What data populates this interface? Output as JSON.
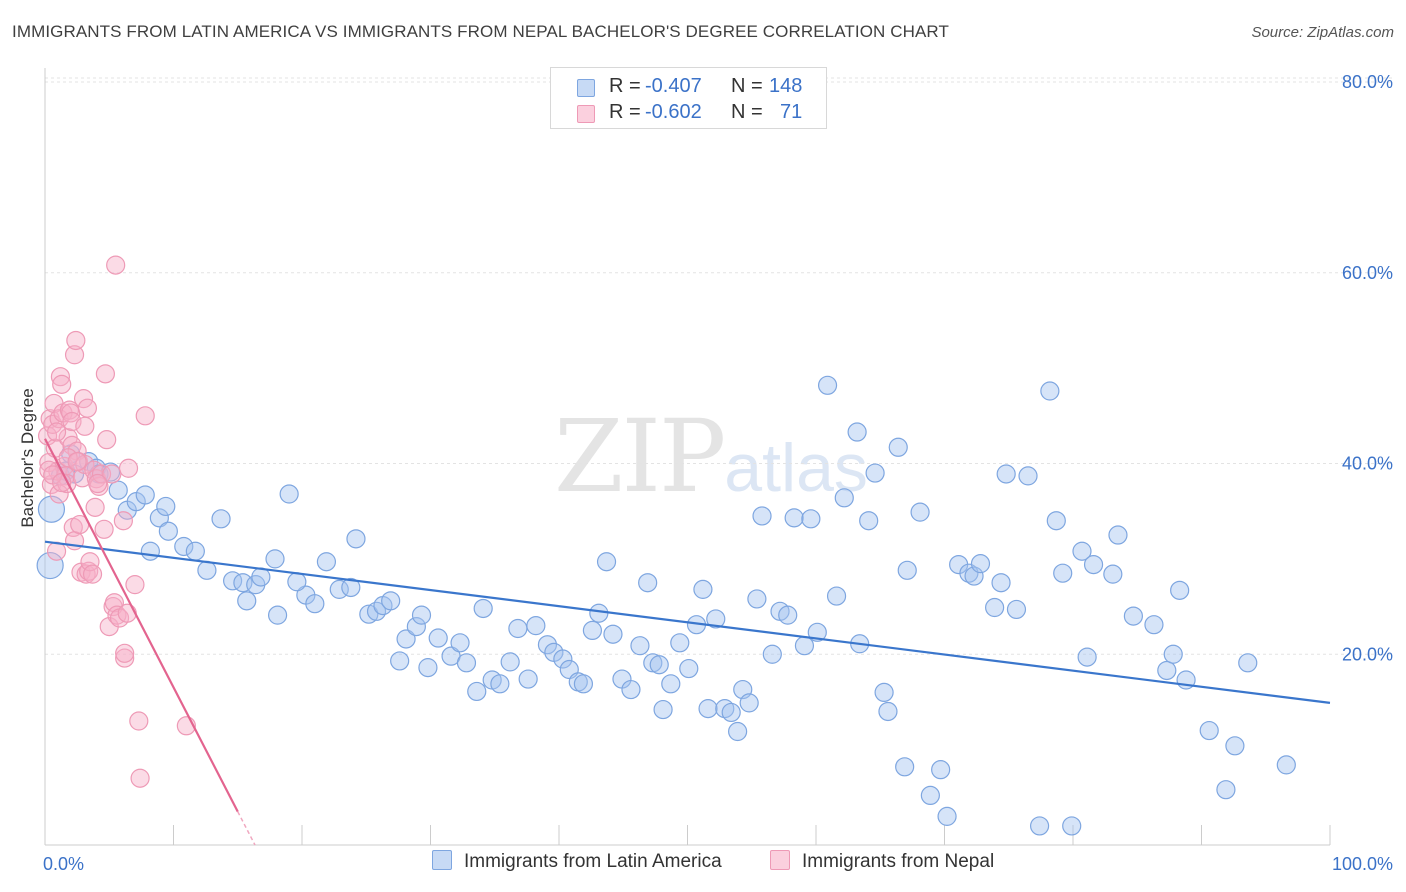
{
  "title": "IMMIGRANTS FROM LATIN AMERICA VS IMMIGRANTS FROM NEPAL BACHELOR'S DEGREE CORRELATION CHART",
  "source": "Source: ZipAtlas.com",
  "watermark": {
    "zip": "ZIP",
    "atlas": "atlas"
  },
  "legend": {
    "rows": [
      {
        "r_label": "R =",
        "r_value": "-0.407",
        "n_label": "N =",
        "n_value": "148",
        "color": "#a9c6ee"
      },
      {
        "r_label": "R =",
        "r_value": "-0.602",
        "n_label": "N =",
        "n_value": "71",
        "color": "#f5b3c8"
      }
    ]
  },
  "bottom_legend": [
    {
      "label": "Immigrants from Latin America",
      "color": "#a9c6ee"
    },
    {
      "label": "Immigrants from Nepal",
      "color": "#f5b3c8"
    }
  ],
  "chart_data": {
    "type": "scatter",
    "title": "IMMIGRANTS FROM LATIN AMERICA VS IMMIGRANTS FROM NEPAL BACHELOR'S DEGREE CORRELATION CHART",
    "xlabel": "",
    "ylabel": "Bachelor's Degree",
    "xlim": [
      0,
      100
    ],
    "ylim": [
      0,
      80
    ],
    "x_ticks_labels": [
      "0.0%",
      "100.0%"
    ],
    "y_ticks": [
      20,
      40,
      60,
      80
    ],
    "y_tick_labels": [
      "20.0%",
      "40.0%",
      "60.0%",
      "80.0%"
    ],
    "grid": true,
    "legend_position": "top-center",
    "series": [
      {
        "name": "Immigrants from Latin America",
        "color": "#5b8fd6",
        "trend": {
          "x": [
            0,
            100
          ],
          "y": [
            31.8,
            14.9
          ]
        },
        "points": [
          [
            0.4,
            29.3
          ],
          [
            0.5,
            35.2
          ],
          [
            1.2,
            38.7
          ],
          [
            1.6,
            39.2
          ],
          [
            2.0,
            41.0
          ],
          [
            2.3,
            38.9
          ],
          [
            3.4,
            40.2
          ],
          [
            4.0,
            39.5
          ],
          [
            4.2,
            38.9
          ],
          [
            5.1,
            39.1
          ],
          [
            5.7,
            37.2
          ],
          [
            6.4,
            35.1
          ],
          [
            7.1,
            36.0
          ],
          [
            7.8,
            36.7
          ],
          [
            8.2,
            30.8
          ],
          [
            8.9,
            34.3
          ],
          [
            9.4,
            35.5
          ],
          [
            9.6,
            32.9
          ],
          [
            10.8,
            31.3
          ],
          [
            11.7,
            30.8
          ],
          [
            12.6,
            28.8
          ],
          [
            13.7,
            34.2
          ],
          [
            14.6,
            27.7
          ],
          [
            15.4,
            27.5
          ],
          [
            15.7,
            25.6
          ],
          [
            16.4,
            27.3
          ],
          [
            16.8,
            28.1
          ],
          [
            18.1,
            24.1
          ],
          [
            17.9,
            30.0
          ],
          [
            19.0,
            36.8
          ],
          [
            20.3,
            26.2
          ],
          [
            21.0,
            25.3
          ],
          [
            19.6,
            27.6
          ],
          [
            21.9,
            29.7
          ],
          [
            22.9,
            26.8
          ],
          [
            23.8,
            27.0
          ],
          [
            24.2,
            32.1
          ],
          [
            25.2,
            24.2
          ],
          [
            25.8,
            24.5
          ],
          [
            26.3,
            25.1
          ],
          [
            26.9,
            25.6
          ],
          [
            27.6,
            19.3
          ],
          [
            28.1,
            21.6
          ],
          [
            28.9,
            22.9
          ],
          [
            29.3,
            24.1
          ],
          [
            29.8,
            18.6
          ],
          [
            30.6,
            21.7
          ],
          [
            31.6,
            19.8
          ],
          [
            32.3,
            21.2
          ],
          [
            32.8,
            19.1
          ],
          [
            33.6,
            16.1
          ],
          [
            34.1,
            24.8
          ],
          [
            34.8,
            17.3
          ],
          [
            35.4,
            16.9
          ],
          [
            36.2,
            19.2
          ],
          [
            36.8,
            22.7
          ],
          [
            37.6,
            17.4
          ],
          [
            38.2,
            23.0
          ],
          [
            39.1,
            21.0
          ],
          [
            39.6,
            20.2
          ],
          [
            40.3,
            19.5
          ],
          [
            40.8,
            18.4
          ],
          [
            41.5,
            17.1
          ],
          [
            41.9,
            16.9
          ],
          [
            42.6,
            22.5
          ],
          [
            43.1,
            24.3
          ],
          [
            43.7,
            29.7
          ],
          [
            44.2,
            22.1
          ],
          [
            44.9,
            17.4
          ],
          [
            45.6,
            16.3
          ],
          [
            46.3,
            20.9
          ],
          [
            46.9,
            27.5
          ],
          [
            47.3,
            19.1
          ],
          [
            47.8,
            18.9
          ],
          [
            48.1,
            14.2
          ],
          [
            48.7,
            16.9
          ],
          [
            49.4,
            21.2
          ],
          [
            50.1,
            18.5
          ],
          [
            50.7,
            23.1
          ],
          [
            51.2,
            26.8
          ],
          [
            51.6,
            14.3
          ],
          [
            52.2,
            23.7
          ],
          [
            52.9,
            14.3
          ],
          [
            53.4,
            13.9
          ],
          [
            53.9,
            11.9
          ],
          [
            54.3,
            16.3
          ],
          [
            54.8,
            14.9
          ],
          [
            55.4,
            25.8
          ],
          [
            55.8,
            34.5
          ],
          [
            56.6,
            20.0
          ],
          [
            57.2,
            24.5
          ],
          [
            57.8,
            24.1
          ],
          [
            58.3,
            34.3
          ],
          [
            59.1,
            20.9
          ],
          [
            59.6,
            34.2
          ],
          [
            60.1,
            22.3
          ],
          [
            60.9,
            48.2
          ],
          [
            61.6,
            26.1
          ],
          [
            62.2,
            36.4
          ],
          [
            63.2,
            43.3
          ],
          [
            63.4,
            21.1
          ],
          [
            64.1,
            34.0
          ],
          [
            64.6,
            39.0
          ],
          [
            65.3,
            16.0
          ],
          [
            65.6,
            14.0
          ],
          [
            66.4,
            41.7
          ],
          [
            66.9,
            8.2
          ],
          [
            67.1,
            28.8
          ],
          [
            68.1,
            34.9
          ],
          [
            68.9,
            5.2
          ],
          [
            69.7,
            7.9
          ],
          [
            70.2,
            3.0
          ],
          [
            71.1,
            29.4
          ],
          [
            71.9,
            28.5
          ],
          [
            72.3,
            28.2
          ],
          [
            72.8,
            29.5
          ],
          [
            73.9,
            24.9
          ],
          [
            74.4,
            27.5
          ],
          [
            74.8,
            38.9
          ],
          [
            75.6,
            24.7
          ],
          [
            76.5,
            38.7
          ],
          [
            77.4,
            2.0
          ],
          [
            78.2,
            47.6
          ],
          [
            78.7,
            34.0
          ],
          [
            79.2,
            28.5
          ],
          [
            79.9,
            2.0
          ],
          [
            80.7,
            30.8
          ],
          [
            81.1,
            19.7
          ],
          [
            81.6,
            29.4
          ],
          [
            83.1,
            28.4
          ],
          [
            83.5,
            32.5
          ],
          [
            84.7,
            24.0
          ],
          [
            86.3,
            23.1
          ],
          [
            87.3,
            18.3
          ],
          [
            87.8,
            20.0
          ],
          [
            88.3,
            26.7
          ],
          [
            88.8,
            17.3
          ],
          [
            90.6,
            12.0
          ],
          [
            91.9,
            5.8
          ],
          [
            92.6,
            10.4
          ],
          [
            93.6,
            19.1
          ],
          [
            96.6,
            8.4
          ]
        ]
      },
      {
        "name": "Immigrants from Nepal",
        "color": "#e8709a",
        "trend": {
          "x": [
            0,
            15.0
          ],
          "y": [
            42.6,
            3.5
          ]
        },
        "points": [
          [
            0.2,
            42.9
          ],
          [
            0.3,
            40.1
          ],
          [
            0.4,
            44.7
          ],
          [
            0.5,
            37.8
          ],
          [
            0.6,
            44.1
          ],
          [
            0.7,
            46.3
          ],
          [
            0.8,
            41.6
          ],
          [
            0.9,
            30.8
          ],
          [
            1.0,
            39.2
          ],
          [
            1.1,
            44.7
          ],
          [
            1.1,
            36.8
          ],
          [
            1.2,
            49.1
          ],
          [
            1.3,
            48.3
          ],
          [
            1.4,
            45.3
          ],
          [
            1.5,
            39.7
          ],
          [
            1.6,
            38.7
          ],
          [
            1.7,
            37.9
          ],
          [
            1.8,
            42.7
          ],
          [
            1.9,
            45.6
          ],
          [
            2.0,
            45.3
          ],
          [
            2.1,
            44.4
          ],
          [
            2.1,
            41.9
          ],
          [
            2.2,
            33.3
          ],
          [
            2.3,
            31.9
          ],
          [
            2.3,
            51.4
          ],
          [
            2.4,
            52.9
          ],
          [
            2.5,
            41.3
          ],
          [
            2.6,
            40.2
          ],
          [
            2.7,
            33.6
          ],
          [
            2.8,
            28.6
          ],
          [
            2.9,
            38.5
          ],
          [
            3.0,
            46.8
          ],
          [
            3.1,
            39.9
          ],
          [
            3.2,
            28.4
          ],
          [
            3.3,
            45.8
          ],
          [
            3.4,
            28.7
          ],
          [
            3.5,
            29.7
          ],
          [
            3.7,
            28.4
          ],
          [
            3.8,
            39.3
          ],
          [
            3.9,
            35.4
          ],
          [
            4.0,
            38.4
          ],
          [
            4.2,
            37.6
          ],
          [
            4.4,
            38.9
          ],
          [
            4.6,
            33.1
          ],
          [
            4.7,
            49.4
          ],
          [
            4.8,
            42.5
          ],
          [
            5.0,
            22.9
          ],
          [
            5.2,
            38.9
          ],
          [
            5.3,
            25.0
          ],
          [
            5.4,
            25.4
          ],
          [
            5.5,
            60.8
          ],
          [
            5.6,
            24.1
          ],
          [
            5.8,
            23.8
          ],
          [
            6.1,
            34.0
          ],
          [
            6.2,
            19.6
          ],
          [
            6.2,
            20.1
          ],
          [
            6.4,
            24.3
          ],
          [
            7.0,
            27.3
          ],
          [
            7.3,
            13.0
          ],
          [
            7.4,
            7.0
          ],
          [
            7.8,
            45.0
          ],
          [
            11.0,
            12.5
          ],
          [
            0.3,
            39.3
          ],
          [
            0.6,
            38.8
          ],
          [
            0.9,
            43.3
          ],
          [
            1.3,
            38.0
          ],
          [
            1.8,
            40.6
          ],
          [
            2.5,
            40.2
          ],
          [
            3.1,
            43.9
          ],
          [
            4.1,
            37.9
          ],
          [
            6.5,
            39.5
          ]
        ]
      }
    ]
  }
}
